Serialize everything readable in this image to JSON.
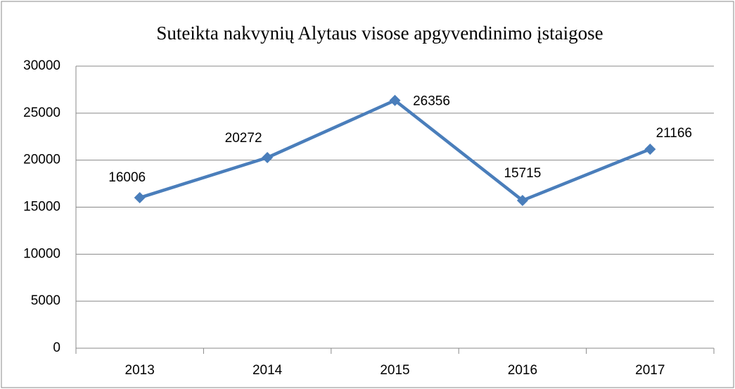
{
  "chart_data": {
    "type": "line",
    "title": "Suteikta nakvynių Alytaus visose apgyvendinimo įstaigose",
    "categories": [
      "2013",
      "2014",
      "2015",
      "2016",
      "2017"
    ],
    "series": [
      {
        "name": "Suteikta nakvynių",
        "color": "#4a7ebb",
        "values": [
          16006,
          20272,
          26356,
          15715,
          21166
        ]
      }
    ],
    "ylim": [
      0,
      30000
    ],
    "yticks": [
      0,
      5000,
      10000,
      15000,
      20000,
      25000,
      30000
    ],
    "grid": true
  }
}
